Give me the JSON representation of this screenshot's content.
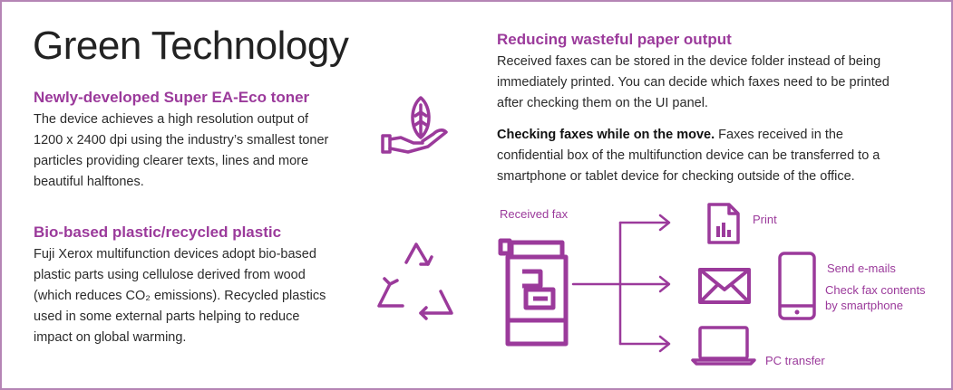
{
  "title": "Green Technology",
  "toner": {
    "heading": "Newly-developed Super EA-Eco toner",
    "lines": [
      "The device achieves a high resolution output of",
      "1200 x 2400 dpi using the industry’s smallest toner",
      "particles providing clearer texts, lines and more",
      "beautiful halftones."
    ]
  },
  "plastic": {
    "heading": "Bio-based plastic/recycled plastic",
    "lines": [
      "Fuji Xerox multifunction devices adopt bio-based",
      "plastic parts using cellulose derived from wood",
      "(which reduces CO₂ emissions). Recycled plastics",
      "used in some external parts helping to reduce",
      "impact on global warming."
    ]
  },
  "paper": {
    "heading": "Reducing wasteful paper output",
    "lines": [
      "Received faxes can be stored in the device folder instead of being",
      "immediately printed. You can decide which faxes need to be printed",
      "after checking them on the UI panel."
    ]
  },
  "mobile": {
    "lead": "Checking faxes while on the move.",
    "lines": [
      " Faxes received in the",
      "confidential box of the multifunction device can be transferred to a",
      "smartphone or tablet device for checking outside of the office."
    ]
  },
  "diagram": {
    "received_fax": "Received fax",
    "print": "Print",
    "send_emails": "Send e-mails",
    "check_fax_line1": "Check fax contents",
    "check_fax_line2": "by smartphone",
    "pc_transfer": "PC transfer"
  },
  "colors": {
    "accent": "#9b3a9b",
    "border": "#b585b5",
    "text": "#2b2b2b"
  },
  "icons": [
    "hand-leaf-icon",
    "recycle-icon",
    "multifunction-printer-icon",
    "document-chart-icon",
    "envelope-icon",
    "smartphone-icon",
    "laptop-icon"
  ]
}
